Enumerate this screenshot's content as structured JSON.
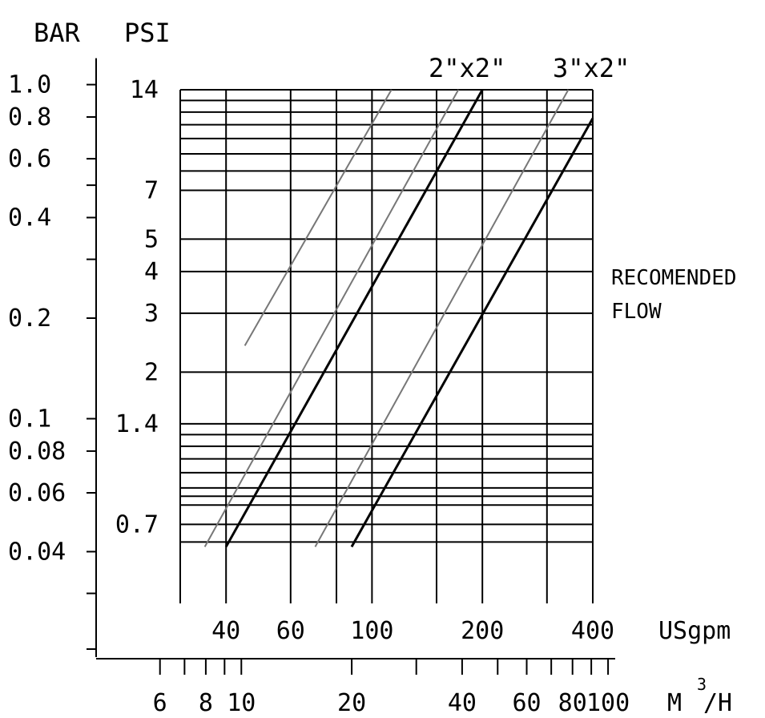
{
  "chart_data": {
    "type": "line",
    "title": "",
    "units": {
      "bar": "BAR",
      "psi": "PSI",
      "usgpm": "USgpm",
      "m3h_base": "M",
      "m3h_exp": "3",
      "m3h_tail": "/H"
    },
    "scale": "log-log",
    "y_axis_bar": {
      "range": [
        0.028,
        1.2
      ],
      "tick_labels": [
        "1.0",
        "0.8",
        "0.6",
        "0.4",
        "0.2",
        "0.1",
        "0.08",
        "0.06",
        "0.04"
      ],
      "tick_values": [
        1.0,
        0.8,
        0.6,
        0.4,
        0.2,
        0.1,
        0.08,
        0.06,
        0.04
      ],
      "minor_ticks": [
        0.5,
        0.3,
        0.03
      ]
    },
    "y_axis_psi": {
      "tick_labels": [
        "14",
        "7",
        "5",
        "4",
        "3",
        "2",
        "1.4",
        "0.7"
      ],
      "tick_values": [
        14,
        7,
        5,
        4,
        3,
        2,
        1.4,
        0.7
      ]
    },
    "x_axis_usgpm": {
      "range": [
        30,
        400
      ],
      "tick_labels": [
        "40",
        "60",
        "100",
        "200",
        "400"
      ],
      "tick_values": [
        40,
        60,
        100,
        200,
        400
      ],
      "grid_values": [
        40,
        60,
        80,
        100,
        150,
        200,
        300,
        400
      ]
    },
    "x_axis_m3h": {
      "tick_labels": [
        "6",
        "8",
        "10",
        "20",
        "40",
        "60",
        "80",
        "100"
      ],
      "tick_values": [
        6,
        8,
        10,
        20,
        40,
        60,
        80,
        100
      ],
      "minor_ticks": [
        7,
        9,
        30,
        50,
        70,
        90
      ]
    },
    "grid_psi": [
      0.62,
      0.7,
      0.8,
      0.85,
      0.9,
      1.0,
      1.1,
      1.2,
      1.3,
      1.4,
      2,
      3,
      4,
      5,
      7,
      8,
      9,
      10,
      11,
      12,
      13,
      14
    ],
    "series": [
      {
        "style": "thin",
        "points": [
          [
            45,
            2.4
          ],
          [
            113,
            14
          ]
        ]
      },
      {
        "style": "thin",
        "points": [
          [
            35,
            0.6
          ],
          [
            172,
            14
          ]
        ]
      },
      {
        "style": "bold",
        "points": [
          [
            40,
            0.6
          ],
          [
            200,
            14
          ]
        ]
      },
      {
        "style": "thin",
        "points": [
          [
            70,
            0.6
          ],
          [
            343,
            14
          ]
        ]
      },
      {
        "style": "bold",
        "points": [
          [
            88,
            0.6
          ],
          [
            400,
            11.5
          ]
        ]
      }
    ],
    "annotations": {
      "size_label_1": "2\"x2\"",
      "size_label_2": "3\"x2\"",
      "recommended_line1": "RECOMENDED",
      "recommended_line2": "FLOW"
    },
    "grid": true,
    "legend": "none"
  }
}
